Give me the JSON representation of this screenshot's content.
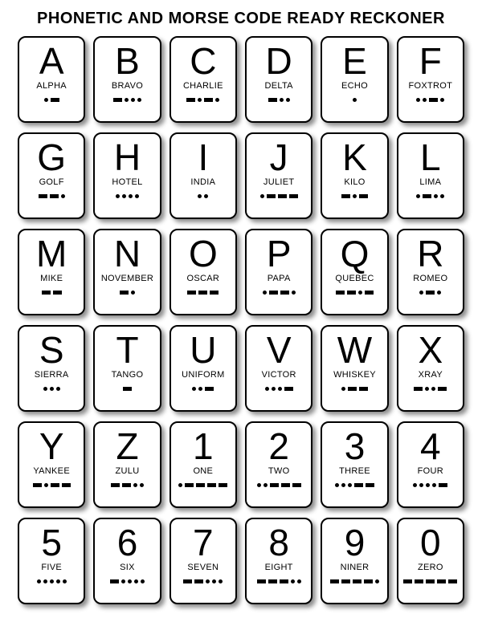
{
  "title": "PHONETIC AND MORSE CODE READY RECKONER",
  "layout": {
    "columns": 6,
    "rows": 6,
    "card_bg": "#ffffff",
    "card_border": "#000000",
    "card_border_width": 2,
    "card_radius": 10,
    "shadow_color": "rgba(0,0,0,0.45)",
    "big_fontsize": 46,
    "phonetic_fontsize": 11,
    "title_fontsize": 20,
    "dot_size": 5,
    "dash_width": 11,
    "dash_height": 5,
    "morse_color": "#000000"
  },
  "cards": [
    {
      "char": "A",
      "phonetic": "ALPHA",
      "morse": ".-"
    },
    {
      "char": "B",
      "phonetic": "BRAVO",
      "morse": "-..."
    },
    {
      "char": "C",
      "phonetic": "CHARLIE",
      "morse": "-.-."
    },
    {
      "char": "D",
      "phonetic": "DELTA",
      "morse": "-.."
    },
    {
      "char": "E",
      "phonetic": "ECHO",
      "morse": "."
    },
    {
      "char": "F",
      "phonetic": "FOXTROT",
      "morse": "..-."
    },
    {
      "char": "G",
      "phonetic": "GOLF",
      "morse": "--."
    },
    {
      "char": "H",
      "phonetic": "HOTEL",
      "morse": "...."
    },
    {
      "char": "I",
      "phonetic": "INDIA",
      "morse": ".."
    },
    {
      "char": "J",
      "phonetic": "JULIET",
      "morse": ".---"
    },
    {
      "char": "K",
      "phonetic": "KILO",
      "morse": "-.-"
    },
    {
      "char": "L",
      "phonetic": "LIMA",
      "morse": ".-.."
    },
    {
      "char": "M",
      "phonetic": "MIKE",
      "morse": "--"
    },
    {
      "char": "N",
      "phonetic": "NOVEMBER",
      "morse": "-."
    },
    {
      "char": "O",
      "phonetic": "OSCAR",
      "morse": "---"
    },
    {
      "char": "P",
      "phonetic": "PAPA",
      "morse": ".--."
    },
    {
      "char": "Q",
      "phonetic": "QUEBEC",
      "morse": "--.-"
    },
    {
      "char": "R",
      "phonetic": "ROMEO",
      "morse": ".-."
    },
    {
      "char": "S",
      "phonetic": "SIERRA",
      "morse": "..."
    },
    {
      "char": "T",
      "phonetic": "TANGO",
      "morse": "-"
    },
    {
      "char": "U",
      "phonetic": "UNIFORM",
      "morse": "..-"
    },
    {
      "char": "V",
      "phonetic": "VICTOR",
      "morse": "...-"
    },
    {
      "char": "W",
      "phonetic": "WHISKEY",
      "morse": ".--"
    },
    {
      "char": "X",
      "phonetic": "XRAY",
      "morse": "-..-"
    },
    {
      "char": "Y",
      "phonetic": "YANKEE",
      "morse": "-.--"
    },
    {
      "char": "Z",
      "phonetic": "ZULU",
      "morse": "--.."
    },
    {
      "char": "1",
      "phonetic": "ONE",
      "morse": ".----"
    },
    {
      "char": "2",
      "phonetic": "TWO",
      "morse": "..---"
    },
    {
      "char": "3",
      "phonetic": "THREE",
      "morse": "...--"
    },
    {
      "char": "4",
      "phonetic": "FOUR",
      "morse": "....-"
    },
    {
      "char": "5",
      "phonetic": "FIVE",
      "morse": "....."
    },
    {
      "char": "6",
      "phonetic": "SIX",
      "morse": "-...."
    },
    {
      "char": "7",
      "phonetic": "SEVEN",
      "morse": "--..."
    },
    {
      "char": "8",
      "phonetic": "EIGHT",
      "morse": "---.."
    },
    {
      "char": "9",
      "phonetic": "NINER",
      "morse": "----."
    },
    {
      "char": "0",
      "phonetic": "ZERO",
      "morse": "-----"
    }
  ]
}
